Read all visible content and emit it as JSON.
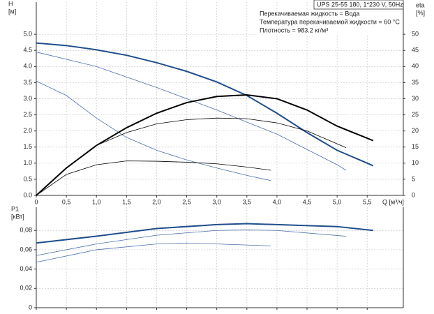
{
  "chart_data": [
    {
      "type": "line",
      "ylabel": [
        "H",
        "[м]"
      ],
      "y2label": [
        "eta",
        "[%]"
      ],
      "xlabel": "Q [м³/ч]",
      "annotations": [
        "UPS 25-55 180, 1*230 V, 50Hz",
        "Перекачиваемая жидкость = Вода",
        "Температура перекачиваемой жидкости = 60 °C",
        "Плотность = 983.2 кг/м³"
      ],
      "xlim": [
        0,
        6.1
      ],
      "xticks": [
        {
          "value": 0,
          "label": "0"
        },
        {
          "value": 0.5,
          "label": "0,5"
        },
        {
          "value": 1,
          "label": "1,0"
        },
        {
          "value": 1.5,
          "label": "1,5"
        },
        {
          "value": 2,
          "label": "2,0"
        },
        {
          "value": 2.5,
          "label": "2,5"
        },
        {
          "value": 3,
          "label": "3,0"
        },
        {
          "value": 3.5,
          "label": "3,5"
        },
        {
          "value": 4,
          "label": "4,0"
        },
        {
          "value": 4.5,
          "label": "4,5"
        },
        {
          "value": 5,
          "label": "5,0"
        },
        {
          "value": 5.5,
          "label": "5,5"
        }
      ],
      "ylim": [
        0,
        6
      ],
      "yticks": [
        {
          "value": 0,
          "label": "0.0"
        },
        {
          "value": 0.5,
          "label": "0.5"
        },
        {
          "value": 1,
          "label": "1.0"
        },
        {
          "value": 1.5,
          "label": "1.5"
        },
        {
          "value": 2,
          "label": "2.0"
        },
        {
          "value": 2.5,
          "label": "2.5"
        },
        {
          "value": 3,
          "label": "3.0"
        },
        {
          "value": 3.5,
          "label": "3.5"
        },
        {
          "value": 4,
          "label": "4.0"
        },
        {
          "value": 4.5,
          "label": "4.5"
        },
        {
          "value": 5,
          "label": "5.0"
        }
      ],
      "y2lim": [
        0,
        60
      ],
      "y2ticks": [
        0,
        5,
        10,
        15,
        20,
        25,
        30,
        35,
        40,
        45,
        50
      ],
      "grid": true,
      "series": [
        {
          "color": "#1f4e8c",
          "width": 2,
          "x": [
            0,
            0.5,
            1,
            1.5,
            2,
            2.5,
            3,
            3.5,
            4,
            4.5,
            5,
            5.5,
            5.6
          ],
          "values": [
            4.73,
            4.65,
            4.52,
            4.35,
            4.12,
            3.85,
            3.52,
            3.1,
            2.55,
            1.95,
            1.4,
            1.0,
            0.92
          ]
        },
        {
          "color": "#4a6fa8",
          "width": 0.8,
          "x": [
            0,
            1,
            2,
            3,
            4,
            5,
            5.15
          ],
          "values": [
            4.45,
            4.0,
            3.35,
            2.65,
            1.9,
            0.95,
            0.78
          ]
        },
        {
          "color": "#4a6fa8",
          "width": 0.8,
          "x": [
            0,
            0.5,
            1,
            1.5,
            2,
            2.5,
            3,
            3.5,
            3.9
          ],
          "values": [
            3.55,
            3.1,
            2.4,
            1.8,
            1.4,
            1.1,
            0.85,
            0.62,
            0.46
          ]
        },
        {
          "color": "#000000",
          "width": 2,
          "axis": "y2",
          "x": [
            0,
            0.5,
            1,
            1.5,
            2,
            2.5,
            3,
            3.5,
            4,
            4.5,
            5,
            5.6
          ],
          "values": [
            0,
            8.5,
            15.5,
            21,
            25.5,
            28.8,
            30.7,
            31.2,
            30,
            26.5,
            21.5,
            17
          ]
        },
        {
          "color": "#000000",
          "width": 0.8,
          "axis": "y2",
          "x": [
            0,
            0.5,
            1,
            1.5,
            2,
            2.5,
            3,
            3.5,
            4,
            4.5,
            5.15
          ],
          "values": [
            0,
            8.5,
            15.5,
            19.5,
            22.2,
            23.5,
            24,
            23.8,
            22.5,
            20,
            14.8
          ]
        },
        {
          "color": "#000000",
          "width": 0.8,
          "axis": "y2",
          "x": [
            0,
            0.5,
            1,
            1.5,
            2,
            2.5,
            3,
            3.5,
            3.9
          ],
          "values": [
            0,
            6.5,
            9.5,
            10.7,
            10.6,
            10.3,
            9.8,
            8.8,
            7.8
          ]
        }
      ]
    },
    {
      "type": "line",
      "ylabel": [
        "P1",
        "[кВт]"
      ],
      "xlim": [
        0,
        6.1
      ],
      "xticks": [
        0,
        0.5,
        1,
        1.5,
        2,
        2.5,
        3,
        3.5,
        4,
        4.5,
        5,
        5.5
      ],
      "ylim": [
        0,
        0.104
      ],
      "yticks": [
        0,
        {
          "value": 0.02,
          "label": "0,02"
        },
        {
          "value": 0.04,
          "label": "0,04"
        },
        {
          "value": 0.06,
          "label": "0,06"
        },
        {
          "value": 0.08,
          "label": "0,08"
        }
      ],
      "grid": true,
      "series": [
        {
          "color": "#1f4e8c",
          "width": 2,
          "x": [
            0,
            1,
            2,
            3,
            3.5,
            4,
            5,
            5.6
          ],
          "values": [
            0.067,
            0.074,
            0.082,
            0.086,
            0.087,
            0.086,
            0.084,
            0.08
          ]
        },
        {
          "color": "#4a6fa8",
          "width": 0.8,
          "x": [
            0,
            1,
            2,
            3,
            3.5,
            4,
            5.15
          ],
          "values": [
            0.054,
            0.066,
            0.075,
            0.08,
            0.0805,
            0.08,
            0.074
          ]
        },
        {
          "color": "#4a6fa8",
          "width": 0.8,
          "x": [
            0,
            1,
            2,
            2.5,
            3,
            3.9
          ],
          "values": [
            0.047,
            0.06,
            0.066,
            0.067,
            0.066,
            0.064
          ]
        }
      ]
    }
  ]
}
